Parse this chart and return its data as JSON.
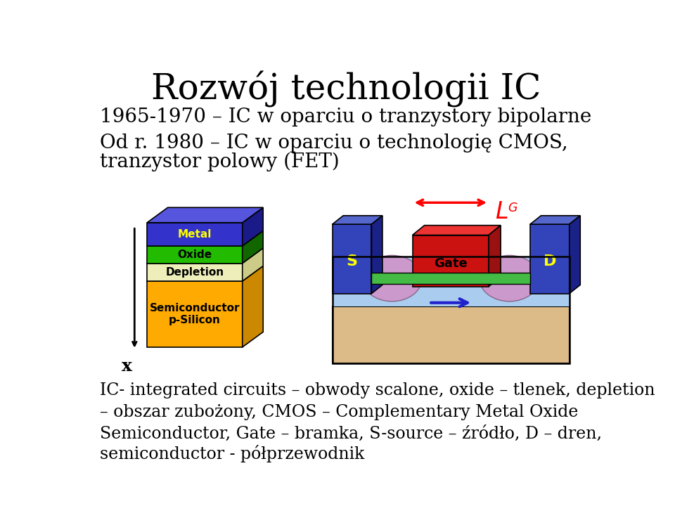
{
  "title": "Rozwój technologii IC",
  "bg_color": "#ffffff",
  "line1": "1965-1970 – IC w oparciu o tranzystory bipolarne",
  "line2a": "Od r. 1980 – IC w oparciu o technologię CMOS,",
  "line2b": "tranzystor polowy (FET)",
  "bottom_line1": "IC- integrated circuits – obwody scalone, oxide – tlenek, depletion",
  "bottom_line2": "– obszar zubożony, CMOS – Complementary Metal Oxide",
  "bottom_line3": "Semiconductor, Gate – bramka, S-source – źródło, D – dren,",
  "bottom_line4": "semiconductor - półprzewodnik",
  "metal_color": "#3333cc",
  "metal_top_color": "#5555dd",
  "metal_side_color": "#1a1a88",
  "oxide_color": "#22bb00",
  "oxide_side_color": "#116600",
  "depletion_color": "#eeeebb",
  "depletion_side_color": "#cccc88",
  "semiconductor_color": "#ffaa00",
  "semiconductor_side_color": "#cc8800",
  "substrate_color": "#aaccff",
  "substrate_bottom_color": "#ffcc88",
  "gate_color": "#cc1111",
  "purple_color": "#bb88cc",
  "green_channel_color": "#44cc44"
}
